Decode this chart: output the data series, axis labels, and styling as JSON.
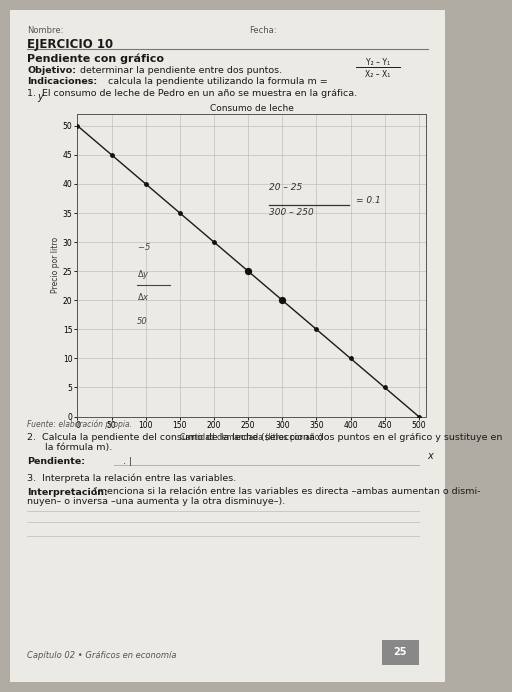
{
  "title": "EJERCICIO 10",
  "subtitle": "Pendiente con gráfico",
  "objetivo_label": "Objetivo:",
  "objetivo_text": " determinar la pendiente entre dos puntos.",
  "indicaciones_label": "Indicaciones:",
  "indicaciones_text": " calcula la pendiente utilizando la formula m = ",
  "formula_num": "Y₂ – Y₁",
  "formula_den": "X₂ – X₁",
  "item1_text": "1.  El consumo de leche de Pedro en un año se muestra en la gráfica.",
  "chart_title": "Consumo de leche",
  "xlabel": "Cantidad demandada (litros por año)",
  "ylabel": "Precio por litro",
  "xlim": [
    0,
    510
  ],
  "ylim": [
    0,
    52
  ],
  "xticks": [
    0,
    50,
    100,
    150,
    200,
    250,
    300,
    350,
    400,
    450,
    500
  ],
  "yticks": [
    0,
    5,
    10,
    15,
    20,
    25,
    30,
    35,
    40,
    45,
    50
  ],
  "data_x": [
    0,
    50,
    100,
    150,
    200,
    250,
    300,
    350,
    400,
    450,
    500
  ],
  "data_y": [
    50,
    45,
    40,
    35,
    30,
    25,
    20,
    15,
    10,
    5,
    0
  ],
  "highlighted_points": [
    [
      250,
      25
    ],
    [
      300,
      20
    ]
  ],
  "fuente_text": "Fuente: elaboración propia.",
  "item2_line1": "2.  Calcula la pendiente del consumo de la leche (selecciona dos puntos en el gráfico y sustituye en",
  "item2_line2": "      la fórmula m).",
  "pendiente_label": "Pendiente:",
  "pendiente_value": "   . |",
  "item3_text": "3.  Interpreta la relación entre las variables.",
  "interpretacion_label": "Interpretación:",
  "interpretacion_line1": " (menciona si la relación entre las variables es directa –ambas aumentan o dismi-",
  "interpretacion_line2": "nuyen– o inversa –una aumenta y la otra disminuye–).",
  "nombre_label": "Nombre:",
  "fecha_label": "Fecha:",
  "page_num": "25",
  "footer_text": "Capítulo 02 • Gráficos en economía",
  "bg_color": "#b0aca4",
  "paper_color": "#eceae5",
  "paper_color2": "#e0ddd8",
  "line_color": "#1a1a1a",
  "grid_color": "#bbbbbb",
  "point_color": "#111111",
  "text_color": "#1a1a1a",
  "label_color": "#333333"
}
